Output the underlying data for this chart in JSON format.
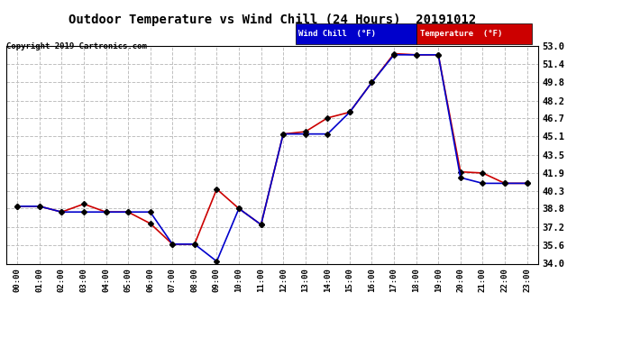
{
  "title": "Outdoor Temperature vs Wind Chill (24 Hours)  20191012",
  "copyright": "Copyright 2019 Cartronics.com",
  "background_color": "#ffffff",
  "plot_bg_color": "#ffffff",
  "grid_color": "#c0c0c0",
  "hours": [
    0,
    1,
    2,
    3,
    4,
    5,
    6,
    7,
    8,
    9,
    10,
    11,
    12,
    13,
    14,
    15,
    16,
    17,
    18,
    19,
    20,
    21,
    22,
    23
  ],
  "temperature": [
    39.0,
    39.0,
    38.5,
    39.2,
    38.5,
    38.5,
    37.5,
    35.7,
    35.7,
    40.5,
    38.8,
    37.4,
    45.3,
    45.5,
    46.7,
    47.2,
    49.8,
    52.3,
    52.2,
    52.2,
    42.0,
    41.9,
    41.0,
    41.0
  ],
  "wind_chill": [
    39.0,
    39.0,
    38.5,
    38.5,
    38.5,
    38.5,
    38.5,
    35.7,
    35.7,
    34.2,
    38.8,
    37.4,
    45.3,
    45.3,
    45.3,
    47.2,
    49.8,
    52.2,
    52.2,
    52.2,
    41.5,
    41.0,
    41.0,
    41.0
  ],
  "temp_color": "#cc0000",
  "wind_chill_color": "#0000cc",
  "ylim": [
    34.0,
    53.0
  ],
  "yticks": [
    34.0,
    35.6,
    37.2,
    38.8,
    40.3,
    41.9,
    43.5,
    45.1,
    46.7,
    48.2,
    49.8,
    51.4,
    53.0
  ],
  "marker_size": 3.0,
  "marker_color": "#000000",
  "line_width": 1.2,
  "legend_wc_label": "Wind Chill  (°F)",
  "legend_temp_label": "Temperature  (°F)"
}
